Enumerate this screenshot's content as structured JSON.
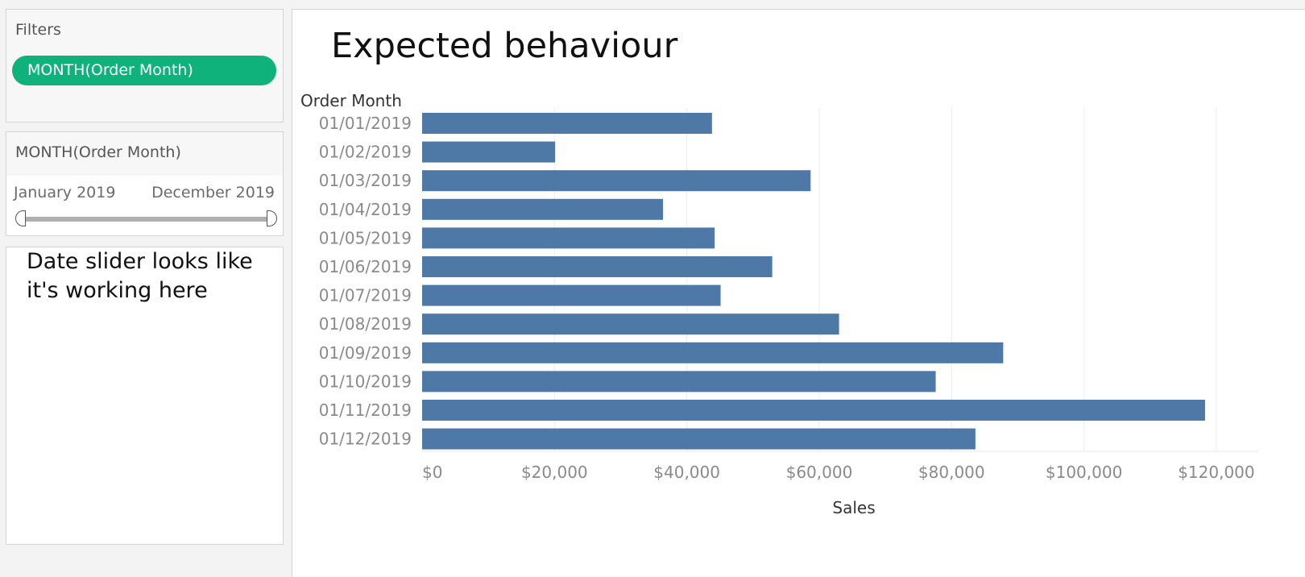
{
  "filters": {
    "title": "Filters",
    "pill_label": "MONTH(Order Month)"
  },
  "slider": {
    "title": "MONTH(Order Month)",
    "start_label": "January 2019",
    "end_label": "December 2019",
    "range_start_fraction": 0,
    "range_end_fraction": 1
  },
  "note": {
    "text": "Date slider looks like it's working here"
  },
  "colors": {
    "pill": "#0fb27a",
    "bar": "#4e79a7"
  },
  "chart_data": {
    "type": "bar",
    "orientation": "horizontal",
    "title": "Expected behaviour",
    "category_header": "Order Month",
    "xlabel": "Sales",
    "categories": [
      "01/01/2019",
      "01/02/2019",
      "01/03/2019",
      "01/04/2019",
      "01/05/2019",
      "01/06/2019",
      "01/07/2019",
      "01/08/2019",
      "01/09/2019",
      "01/10/2019",
      "01/11/2019",
      "01/12/2019"
    ],
    "values": [
      43800,
      20100,
      58700,
      36400,
      44200,
      52900,
      45100,
      63000,
      87800,
      77600,
      118300,
      83600
    ],
    "xlim": [
      0,
      125000
    ],
    "xticks": [
      0,
      20000,
      40000,
      60000,
      80000,
      100000,
      120000
    ],
    "xtick_labels": [
      "$0",
      "$20,000",
      "$40,000",
      "$60,000",
      "$80,000",
      "$100,000",
      "$120,000"
    ],
    "grid": true,
    "legend": "none"
  }
}
